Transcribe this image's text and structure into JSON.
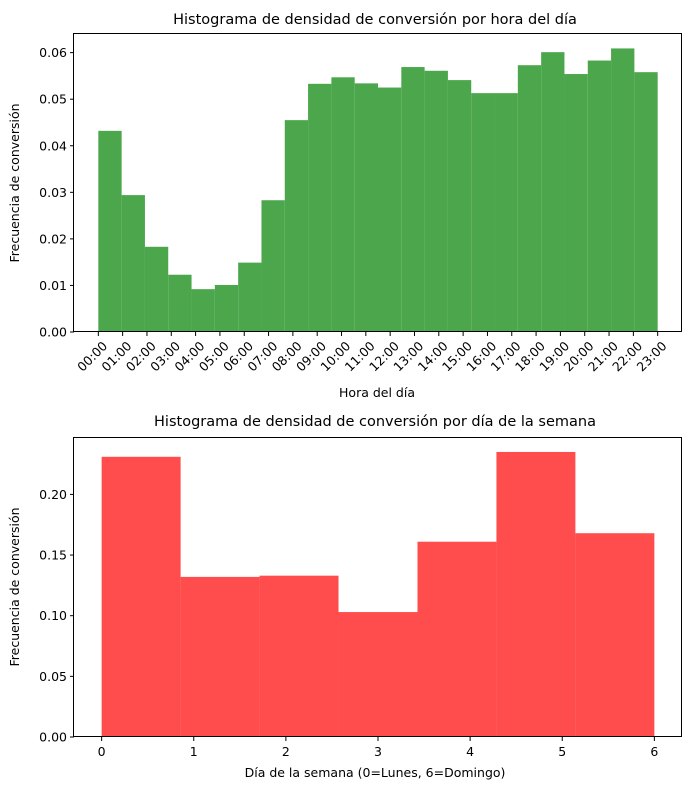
{
  "chart_data": [
    {
      "type": "bar",
      "title": "Histograma de densidad de conversión por hora del día",
      "xlabel": "Hora del día",
      "ylabel": "Frecuencia de conversión",
      "color": "#4ca64c",
      "xlim": [
        -1,
        24
      ],
      "ylim": [
        0,
        0.064
      ],
      "yticks": [
        0.0,
        0.01,
        0.02,
        0.03,
        0.04,
        0.05,
        0.06
      ],
      "ytick_labels": [
        "0.00",
        "0.01",
        "0.02",
        "0.03",
        "0.04",
        "0.05",
        "0.06"
      ],
      "xticks": [
        0,
        1,
        2,
        3,
        4,
        5,
        6,
        7,
        8,
        9,
        10,
        11,
        12,
        13,
        14,
        15,
        16,
        17,
        18,
        19,
        20,
        21,
        22,
        23
      ],
      "xtick_labels": [
        "00:00",
        "01:00",
        "02:00",
        "03:00",
        "04:00",
        "05:00",
        "06:00",
        "07:00",
        "08:00",
        "09:00",
        "10:00",
        "11:00",
        "12:00",
        "13:00",
        "14:00",
        "15:00",
        "16:00",
        "17:00",
        "18:00",
        "19:00",
        "20:00",
        "21:00",
        "22:00",
        "23:00"
      ],
      "bin_range": [
        0,
        23
      ],
      "values": [
        0.0432,
        0.0294,
        0.0183,
        0.0123,
        0.0092,
        0.0101,
        0.0149,
        0.0283,
        0.0455,
        0.0533,
        0.0547,
        0.0534,
        0.0525,
        0.0569,
        0.0561,
        0.0541,
        0.0513,
        0.0513,
        0.0573,
        0.0601,
        0.0554,
        0.0583,
        0.0609,
        0.0558
      ],
      "grid": false
    },
    {
      "type": "bar",
      "title": "Histograma de densidad de conversión por día de la semana",
      "xlabel": "Día de la semana (0=Lunes, 6=Domingo)",
      "ylabel": "Frecuencia de conversión",
      "color": "#ff4c4c",
      "xlim": [
        -0.3,
        6.3
      ],
      "ylim": [
        0,
        0.2465
      ],
      "yticks": [
        0.0,
        0.05,
        0.1,
        0.15,
        0.2
      ],
      "ytick_labels": [
        "0.00",
        "0.05",
        "0.10",
        "0.15",
        "0.20"
      ],
      "xticks": [
        0,
        1,
        2,
        3,
        4,
        5,
        6
      ],
      "xtick_labels": [
        "0",
        "1",
        "2",
        "3",
        "4",
        "5",
        "6"
      ],
      "bin_range": [
        0,
        6
      ],
      "values": [
        0.231,
        0.132,
        0.133,
        0.103,
        0.161,
        0.235,
        0.168
      ],
      "grid": false
    }
  ]
}
